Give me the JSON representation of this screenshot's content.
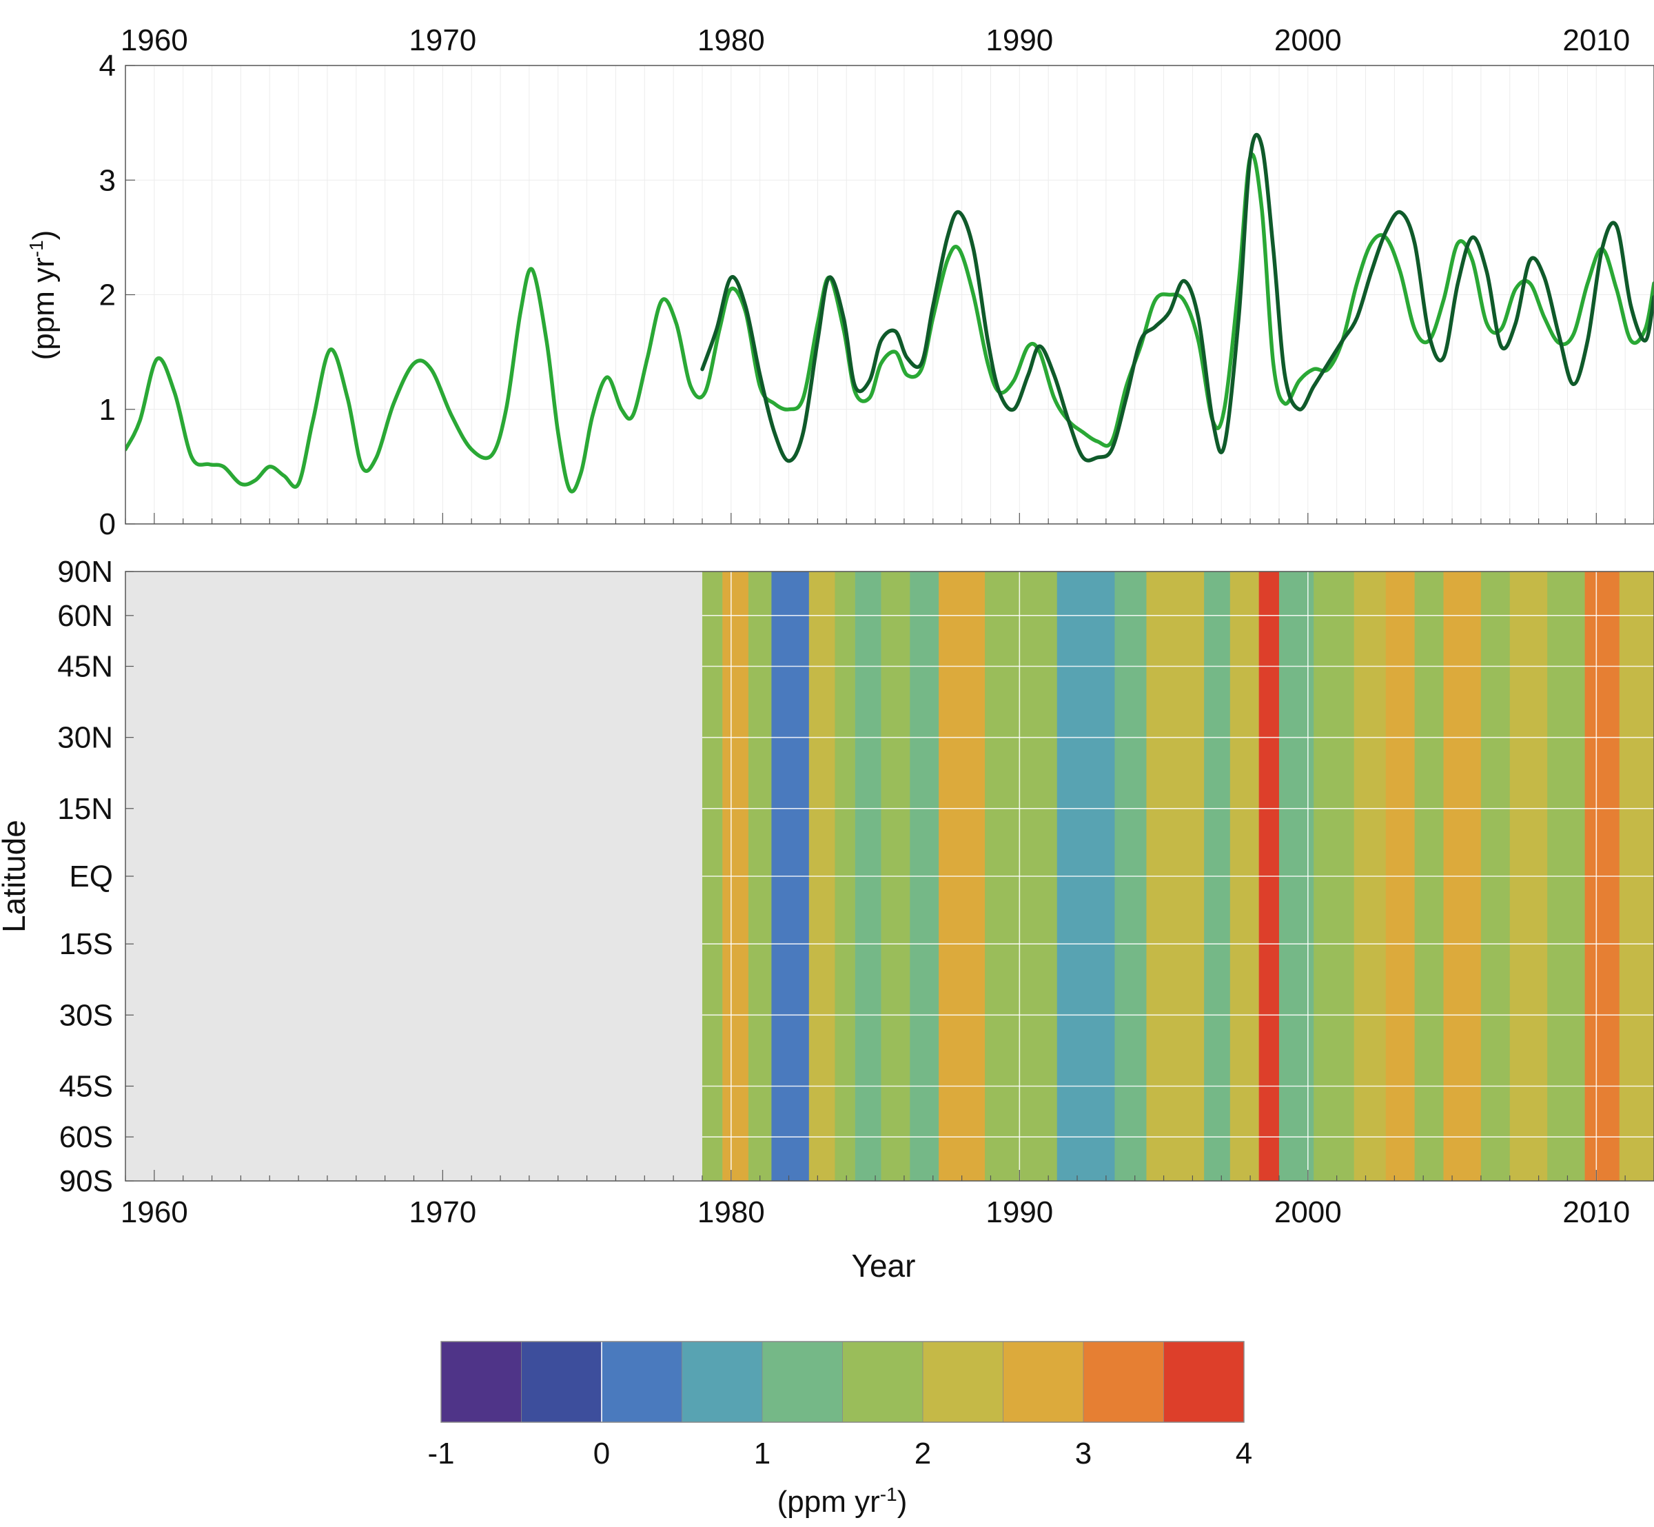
{
  "chart_data": [
    {
      "type": "line",
      "title": "",
      "xlabel": "",
      "ylabel": "(ppm yr",
      "ylabel_sup": "-1",
      "ylabel_close": ")",
      "xlim": [
        1959,
        2012
      ],
      "ylim": [
        0,
        4
      ],
      "x_ticks": [
        "1960",
        "1970",
        "1980",
        "1990",
        "2000",
        "2010"
      ],
      "y_ticks": [
        "0",
        "1",
        "2",
        "3",
        "4"
      ],
      "grid": true,
      "colors": {
        "light": "#2aa835",
        "dark": "#0f5a2a"
      },
      "series": [
        {
          "color_key": "light",
          "x": [
            1959.0,
            1959.5,
            1960.1,
            1960.7,
            1961.3,
            1961.9,
            1962.4,
            1963.0,
            1963.5,
            1964.0,
            1964.5,
            1965.0,
            1965.5,
            1966.1,
            1966.7,
            1967.2,
            1967.7,
            1968.3,
            1969.0,
            1969.6,
            1970.3,
            1971.0,
            1971.7,
            1972.2,
            1972.7,
            1973.1,
            1973.6,
            1974.0,
            1974.4,
            1974.8,
            1975.2,
            1975.7,
            1976.2,
            1976.6,
            1977.1,
            1977.6,
            1978.1,
            1978.6,
            1979.1,
            1979.6,
            1980.0,
            1980.5,
            1981.0,
            1981.5,
            1982.0,
            1982.5,
            1983.0,
            1983.4,
            1983.9,
            1984.3,
            1984.8,
            1985.2,
            1985.7,
            1986.1,
            1986.6,
            1987.0,
            1987.5,
            1987.9,
            1988.4,
            1988.9,
            1989.3,
            1989.8,
            1990.3,
            1990.7,
            1991.2,
            1991.7,
            1992.2,
            1992.7,
            1993.2,
            1993.7,
            1994.2,
            1994.7,
            1995.2,
            1995.7,
            1996.2,
            1996.7,
            1997.1,
            1997.6,
            1998.0,
            1998.4,
            1998.8,
            1999.2,
            1999.7,
            2000.2,
            2000.7,
            2001.2,
            2001.7,
            2002.2,
            2002.7,
            2003.2,
            2003.7,
            2004.2,
            2004.7,
            2005.2,
            2005.7,
            2006.2,
            2006.7,
            2007.2,
            2007.7,
            2008.2,
            2008.7,
            2009.2,
            2009.7,
            2010.2,
            2010.7,
            2011.2,
            2011.7,
            2012.0
          ],
          "values": [
            0.65,
            0.9,
            1.44,
            1.15,
            0.58,
            0.52,
            0.5,
            0.35,
            0.38,
            0.5,
            0.42,
            0.35,
            0.9,
            1.52,
            1.1,
            0.5,
            0.58,
            1.05,
            1.4,
            1.35,
            0.95,
            0.65,
            0.6,
            1.0,
            1.85,
            2.22,
            1.6,
            0.8,
            0.3,
            0.45,
            0.95,
            1.28,
            1.0,
            0.95,
            1.45,
            1.95,
            1.75,
            1.2,
            1.15,
            1.7,
            2.05,
            1.85,
            1.2,
            1.05,
            1.0,
            1.1,
            1.75,
            2.15,
            1.7,
            1.15,
            1.1,
            1.4,
            1.5,
            1.3,
            1.35,
            1.8,
            2.3,
            2.4,
            2.0,
            1.4,
            1.15,
            1.25,
            1.55,
            1.5,
            1.1,
            0.9,
            0.8,
            0.72,
            0.72,
            1.2,
            1.55,
            1.95,
            2.0,
            1.95,
            1.6,
            0.9,
            1.0,
            2.1,
            3.2,
            2.75,
            1.4,
            1.05,
            1.25,
            1.35,
            1.35,
            1.6,
            2.1,
            2.45,
            2.5,
            2.2,
            1.7,
            1.6,
            1.95,
            2.45,
            2.3,
            1.75,
            1.7,
            2.05,
            2.1,
            1.8,
            1.58,
            1.65,
            2.1,
            2.4,
            2.05,
            1.6,
            1.7,
            2.1
          ]
        },
        {
          "color_key": "dark",
          "x": [
            1979.0,
            1979.5,
            1980.0,
            1980.5,
            1981.0,
            1981.5,
            1982.0,
            1982.5,
            1983.0,
            1983.4,
            1983.9,
            1984.3,
            1984.8,
            1985.2,
            1985.7,
            1986.1,
            1986.6,
            1987.0,
            1987.5,
            1987.9,
            1988.4,
            1988.9,
            1989.3,
            1989.8,
            1990.3,
            1990.7,
            1991.2,
            1991.7,
            1992.2,
            1992.7,
            1993.2,
            1993.7,
            1994.2,
            1994.7,
            1995.2,
            1995.7,
            1996.2,
            1996.7,
            1997.1,
            1997.6,
            1998.0,
            1998.4,
            1998.8,
            1999.2,
            1999.7,
            2000.2,
            2000.7,
            2001.2,
            2001.7,
            2002.2,
            2002.7,
            2003.2,
            2003.7,
            2004.2,
            2004.7,
            2005.2,
            2005.7,
            2006.2,
            2006.7,
            2007.2,
            2007.7,
            2008.2,
            2008.7,
            2009.2,
            2009.7,
            2010.2,
            2010.7,
            2011.2,
            2011.7,
            2012.0
          ],
          "values": [
            1.35,
            1.7,
            2.15,
            1.9,
            1.3,
            0.8,
            0.55,
            0.8,
            1.6,
            2.15,
            1.8,
            1.2,
            1.25,
            1.6,
            1.68,
            1.45,
            1.4,
            1.9,
            2.5,
            2.72,
            2.4,
            1.6,
            1.15,
            1.0,
            1.3,
            1.55,
            1.3,
            0.9,
            0.58,
            0.58,
            0.65,
            1.1,
            1.6,
            1.72,
            1.85,
            2.12,
            1.8,
            0.9,
            0.68,
            1.8,
            3.2,
            3.3,
            2.4,
            1.3,
            1.0,
            1.2,
            1.4,
            1.6,
            1.8,
            2.2,
            2.55,
            2.72,
            2.45,
            1.65,
            1.45,
            2.1,
            2.5,
            2.2,
            1.55,
            1.75,
            2.3,
            2.15,
            1.65,
            1.22,
            1.6,
            2.4,
            2.6,
            1.9,
            1.6,
            1.98
          ]
        }
      ]
    },
    {
      "type": "heatmap",
      "title": "",
      "xlabel": "Year",
      "ylabel": "Latitude",
      "xlim": [
        1959,
        2012
      ],
      "data_start": 1979,
      "x_ticks": [
        "1960",
        "1970",
        "1980",
        "1990",
        "2000",
        "2010"
      ],
      "lat_ticks": [
        {
          "label": "90N",
          "pos": 90
        },
        {
          "label": "60N",
          "pos": 77
        },
        {
          "label": "45N",
          "pos": 62
        },
        {
          "label": "30N",
          "pos": 41
        },
        {
          "label": "15N",
          "pos": 20
        },
        {
          "label": "EQ",
          "pos": 0
        },
        {
          "label": "15S",
          "pos": -20
        },
        {
          "label": "30S",
          "pos": -41
        },
        {
          "label": "45S",
          "pos": -62
        },
        {
          "label": "60S",
          "pos": -77
        },
        {
          "label": "90S",
          "pos": -90
        }
      ],
      "colorbar": {
        "label": "(ppm yr",
        "label_sup": "-1",
        "label_close": ")",
        "range": [
          -1,
          4
        ],
        "ticks": [
          "-1",
          "0",
          "1",
          "2",
          "3",
          "4"
        ],
        "colors": [
          "#4f3488",
          "#3d4e9c",
          "#4a7abe",
          "#58a3b2",
          "#75b887",
          "#9abd5a",
          "#c5b947",
          "#dcaa3c",
          "#e67f33",
          "#dd3f2a"
        ]
      },
      "no_data_color": "#e6e6e6",
      "year_band_values": [
        {
          "start": 1979.0,
          "end": 1979.7,
          "value": 1.6
        },
        {
          "start": 1979.7,
          "end": 1980.6,
          "value": 2.7
        },
        {
          "start": 1980.6,
          "end": 1981.4,
          "value": 1.5
        },
        {
          "start": 1981.4,
          "end": 1982.7,
          "value": 0.4
        },
        {
          "start": 1982.7,
          "end": 1983.6,
          "value": 2.3
        },
        {
          "start": 1983.6,
          "end": 1984.3,
          "value": 1.7
        },
        {
          "start": 1984.3,
          "end": 1985.2,
          "value": 1.3
        },
        {
          "start": 1985.2,
          "end": 1986.2,
          "value": 1.8
        },
        {
          "start": 1986.2,
          "end": 1987.2,
          "value": 1.4
        },
        {
          "start": 1987.2,
          "end": 1988.8,
          "value": 2.8
        },
        {
          "start": 1988.8,
          "end": 1990.0,
          "value": 1.6
        },
        {
          "start": 1990.0,
          "end": 1991.3,
          "value": 1.5
        },
        {
          "start": 1991.3,
          "end": 1993.3,
          "value": 0.8
        },
        {
          "start": 1993.3,
          "end": 1994.4,
          "value": 1.3
        },
        {
          "start": 1994.4,
          "end": 1996.4,
          "value": 2.0
        },
        {
          "start": 1996.4,
          "end": 1997.3,
          "value": 1.1
        },
        {
          "start": 1997.3,
          "end": 1998.3,
          "value": 2.1
        },
        {
          "start": 1998.3,
          "end": 1999.0,
          "value": 3.6
        },
        {
          "start": 1999.0,
          "end": 2000.2,
          "value": 1.2
        },
        {
          "start": 2000.2,
          "end": 2001.6,
          "value": 1.8
        },
        {
          "start": 2001.6,
          "end": 2002.7,
          "value": 2.3
        },
        {
          "start": 2002.7,
          "end": 2003.7,
          "value": 2.9
        },
        {
          "start": 2003.7,
          "end": 2004.7,
          "value": 1.8
        },
        {
          "start": 2004.7,
          "end": 2006.0,
          "value": 2.7
        },
        {
          "start": 2006.0,
          "end": 2007.0,
          "value": 1.6
        },
        {
          "start": 2007.0,
          "end": 2008.3,
          "value": 2.4
        },
        {
          "start": 2008.3,
          "end": 2009.6,
          "value": 1.5
        },
        {
          "start": 2009.6,
          "end": 2010.8,
          "value": 3.1
        },
        {
          "start": 2010.8,
          "end": 2012.0,
          "value": 2.1
        }
      ]
    }
  ]
}
